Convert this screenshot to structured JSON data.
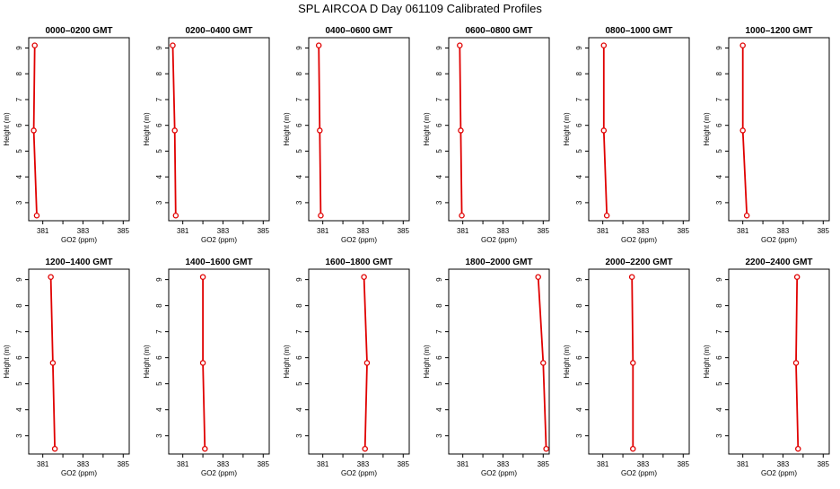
{
  "figure": {
    "title": "SPL AIRCOA D  Day 061109  Calibrated Profiles"
  },
  "style": {
    "series_color": "#e00000",
    "axis_color": "#000000"
  },
  "chart_data": [
    {
      "type": "line",
      "title": "0000–0200 GMT",
      "xlabel": "GO2 (ppm)",
      "ylabel": "Height (m)",
      "xlim": [
        380.3,
        385.3
      ],
      "ylim": [
        2.3,
        9.4
      ],
      "xticks": [
        381,
        383,
        385
      ],
      "xticks_minor": [
        382,
        384
      ],
      "yticks": [
        3,
        4,
        5,
        6,
        7,
        8,
        9
      ],
      "series": [
        {
          "x": [
            380.6,
            380.55,
            380.7
          ],
          "y": [
            9.1,
            5.8,
            2.5
          ]
        }
      ]
    },
    {
      "type": "line",
      "title": "0200–0400 GMT",
      "xlabel": "GO2 (ppm)",
      "ylabel": "Height (m)",
      "xlim": [
        380.3,
        385.3
      ],
      "ylim": [
        2.3,
        9.4
      ],
      "xticks": [
        381,
        383,
        385
      ],
      "xticks_minor": [
        382,
        384
      ],
      "yticks": [
        3,
        4,
        5,
        6,
        7,
        8,
        9
      ],
      "series": [
        {
          "x": [
            380.5,
            380.6,
            380.65
          ],
          "y": [
            9.1,
            5.8,
            2.5
          ]
        }
      ]
    },
    {
      "type": "line",
      "title": "0400–0600 GMT",
      "xlabel": "GO2 (ppm)",
      "ylabel": "Height (m)",
      "xlim": [
        380.3,
        385.3
      ],
      "ylim": [
        2.3,
        9.4
      ],
      "xticks": [
        381,
        383,
        385
      ],
      "xticks_minor": [
        382,
        384
      ],
      "yticks": [
        3,
        4,
        5,
        6,
        7,
        8,
        9
      ],
      "series": [
        {
          "x": [
            380.8,
            380.85,
            380.9
          ],
          "y": [
            9.1,
            5.8,
            2.5
          ]
        }
      ]
    },
    {
      "type": "line",
      "title": "0600–0800 GMT",
      "xlabel": "GO2 (ppm)",
      "ylabel": "Height (m)",
      "xlim": [
        380.3,
        385.3
      ],
      "ylim": [
        2.3,
        9.4
      ],
      "xticks": [
        381,
        383,
        385
      ],
      "xticks_minor": [
        382,
        384
      ],
      "yticks": [
        3,
        4,
        5,
        6,
        7,
        8,
        9
      ],
      "series": [
        {
          "x": [
            380.85,
            380.9,
            380.95
          ],
          "y": [
            9.1,
            5.8,
            2.5
          ]
        }
      ]
    },
    {
      "type": "line",
      "title": "0800–1000 GMT",
      "xlabel": "GO2 (ppm)",
      "ylabel": "Height (m)",
      "xlim": [
        380.3,
        385.3
      ],
      "ylim": [
        2.3,
        9.4
      ],
      "xticks": [
        381,
        383,
        385
      ],
      "xticks_minor": [
        382,
        384
      ],
      "yticks": [
        3,
        4,
        5,
        6,
        7,
        8,
        9
      ],
      "series": [
        {
          "x": [
            381.05,
            381.05,
            381.2
          ],
          "y": [
            9.1,
            5.8,
            2.5
          ]
        }
      ]
    },
    {
      "type": "line",
      "title": "1000–1200 GMT",
      "xlabel": "GO2 (ppm)",
      "ylabel": "Height (m)",
      "xlim": [
        380.3,
        385.3
      ],
      "ylim": [
        2.3,
        9.4
      ],
      "xticks": [
        381,
        383,
        385
      ],
      "xticks_minor": [
        382,
        384
      ],
      "yticks": [
        3,
        4,
        5,
        6,
        7,
        8,
        9
      ],
      "series": [
        {
          "x": [
            381.0,
            381.0,
            381.2
          ],
          "y": [
            9.1,
            5.8,
            2.5
          ]
        }
      ]
    },
    {
      "type": "line",
      "title": "1200–1400 GMT",
      "xlabel": "GO2 (ppm)",
      "ylabel": "Height (m)",
      "xlim": [
        380.3,
        385.3
      ],
      "ylim": [
        2.3,
        9.4
      ],
      "xticks": [
        381,
        383,
        385
      ],
      "xticks_minor": [
        382,
        384
      ],
      "yticks": [
        3,
        4,
        5,
        6,
        7,
        8,
        9
      ],
      "series": [
        {
          "x": [
            381.4,
            381.5,
            381.6
          ],
          "y": [
            9.1,
            5.8,
            2.5
          ]
        }
      ]
    },
    {
      "type": "line",
      "title": "1400–1600 GMT",
      "xlabel": "GO2 (ppm)",
      "ylabel": "Height (m)",
      "xlim": [
        380.3,
        385.3
      ],
      "ylim": [
        2.3,
        9.4
      ],
      "xticks": [
        381,
        383,
        385
      ],
      "xticks_minor": [
        382,
        384
      ],
      "yticks": [
        3,
        4,
        5,
        6,
        7,
        8,
        9
      ],
      "series": [
        {
          "x": [
            382.0,
            382.0,
            382.1
          ],
          "y": [
            9.1,
            5.8,
            2.5
          ]
        }
      ]
    },
    {
      "type": "line",
      "title": "1600–1800 GMT",
      "xlabel": "GO2 (ppm)",
      "ylabel": "Height (m)",
      "xlim": [
        380.3,
        385.3
      ],
      "ylim": [
        2.3,
        9.4
      ],
      "xticks": [
        381,
        383,
        385
      ],
      "xticks_minor": [
        382,
        384
      ],
      "yticks": [
        3,
        4,
        5,
        6,
        7,
        8,
        9
      ],
      "series": [
        {
          "x": [
            383.05,
            383.2,
            383.1
          ],
          "y": [
            9.1,
            5.8,
            2.5
          ]
        }
      ]
    },
    {
      "type": "line",
      "title": "1800–2000 GMT",
      "xlabel": "GO2 (ppm)",
      "ylabel": "Height (m)",
      "xlim": [
        380.3,
        385.3
      ],
      "ylim": [
        2.3,
        9.4
      ],
      "xticks": [
        381,
        383,
        385
      ],
      "xticks_minor": [
        382,
        384
      ],
      "yticks": [
        3,
        4,
        5,
        6,
        7,
        8,
        9
      ],
      "series": [
        {
          "x": [
            384.75,
            385.0,
            385.15
          ],
          "y": [
            9.1,
            5.8,
            2.5
          ]
        }
      ]
    },
    {
      "type": "line",
      "title": "2000–2200 GMT",
      "xlabel": "GO2 (ppm)",
      "ylabel": "Height (m)",
      "xlim": [
        380.3,
        385.3
      ],
      "ylim": [
        2.3,
        9.4
      ],
      "xticks": [
        381,
        383,
        385
      ],
      "xticks_minor": [
        382,
        384
      ],
      "yticks": [
        3,
        4,
        5,
        6,
        7,
        8,
        9
      ],
      "series": [
        {
          "x": [
            382.45,
            382.5,
            382.5
          ],
          "y": [
            9.1,
            5.8,
            2.5
          ]
        }
      ]
    },
    {
      "type": "line",
      "title": "2200–2400 GMT",
      "xlabel": "GO2 (ppm)",
      "ylabel": "Height (m)",
      "xlim": [
        380.3,
        385.3
      ],
      "ylim": [
        2.3,
        9.4
      ],
      "xticks": [
        381,
        383,
        385
      ],
      "xticks_minor": [
        382,
        384
      ],
      "yticks": [
        3,
        4,
        5,
        6,
        7,
        8,
        9
      ],
      "series": [
        {
          "x": [
            383.7,
            383.65,
            383.75
          ],
          "y": [
            9.1,
            5.8,
            2.5
          ]
        }
      ]
    }
  ]
}
